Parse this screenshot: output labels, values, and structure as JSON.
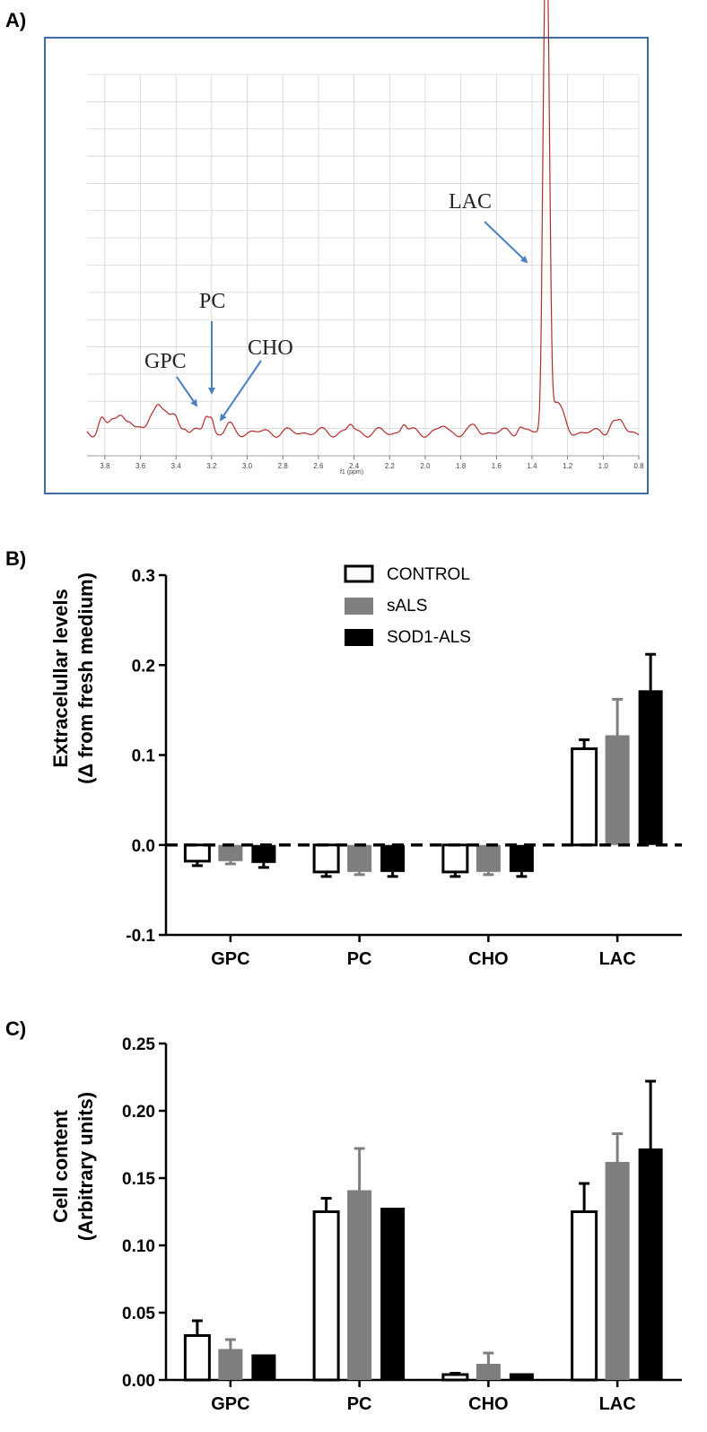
{
  "chart_data": [
    {
      "panel": "A)",
      "type": "line",
      "xlabel": "f1 (ppm)",
      "x_ticks": [
        "3.8",
        "3.6",
        "3.4",
        "3.2",
        "3.0",
        "2.8",
        "2.6",
        "2.4",
        "2.2",
        "2.0",
        "1.8",
        "1.6",
        "1.4",
        "1.2",
        "1.0",
        "0.8"
      ],
      "xlim": [
        3.9,
        0.8
      ],
      "grid": true,
      "series_color": "#b22b2b",
      "frame_color": "#3e6a9e",
      "arrow_color": "#4a7fc0",
      "annotations": [
        {
          "label": "LAC",
          "ppm": 1.32
        },
        {
          "label": "PC",
          "ppm": 3.22
        },
        {
          "label": "GPC",
          "ppm": 3.23
        },
        {
          "label": "CHO",
          "ppm": 3.2
        }
      ]
    },
    {
      "panel": "B)",
      "type": "bar",
      "ylabel_line1": "Extracelullar levels",
      "ylabel_line2": "(Δ from fresh medium)",
      "ylim": [
        -0.1,
        0.3
      ],
      "yticks": [
        "-0.1",
        "0.0",
        "0.1",
        "0.2",
        "0.3"
      ],
      "categories": [
        "GPC",
        "PC",
        "CHO",
        "LAC"
      ],
      "legend": [
        "CONTROL",
        "sALS",
        "SOD1-ALS"
      ],
      "series": [
        {
          "name": "CONTROL",
          "color": "#ffffff",
          "values": [
            -0.018,
            -0.03,
            -0.03,
            0.107
          ],
          "errors": [
            0.005,
            0.005,
            0.005,
            0.01
          ]
        },
        {
          "name": "sALS",
          "color": "#7f7f7f",
          "values": [
            -0.018,
            -0.03,
            -0.03,
            0.122
          ],
          "errors": [
            0.003,
            0.003,
            0.003,
            0.04
          ]
        },
        {
          "name": "SOD1-ALS",
          "color": "#000000",
          "values": [
            -0.02,
            -0.03,
            -0.03,
            0.172
          ],
          "errors": [
            0.005,
            0.005,
            0.005,
            0.04
          ]
        }
      ]
    },
    {
      "panel": "C)",
      "type": "bar",
      "ylabel_line1": "Cell content",
      "ylabel_line2": "(Arbitrary units)",
      "ylim": [
        0,
        0.25
      ],
      "yticks": [
        "0.00",
        "0.05",
        "0.10",
        "0.15",
        "0.20",
        "0.25"
      ],
      "categories": [
        "GPC",
        "PC",
        "CHO",
        "LAC"
      ],
      "series": [
        {
          "name": "CONTROL",
          "color": "#ffffff",
          "values": [
            0.033,
            0.125,
            0.004,
            0.125
          ],
          "errors": [
            0.011,
            0.01,
            0.001,
            0.021
          ]
        },
        {
          "name": "sALS",
          "color": "#7f7f7f",
          "values": [
            0.023,
            0.141,
            0.012,
            0.162
          ],
          "errors": [
            0.007,
            0.031,
            0.008,
            0.021
          ]
        },
        {
          "name": "SOD1-ALS",
          "color": "#000000",
          "values": [
            0.019,
            0.128,
            0.005,
            0.172
          ],
          "errors": [
            0.0,
            0.0,
            0.0,
            0.05
          ]
        }
      ]
    }
  ]
}
